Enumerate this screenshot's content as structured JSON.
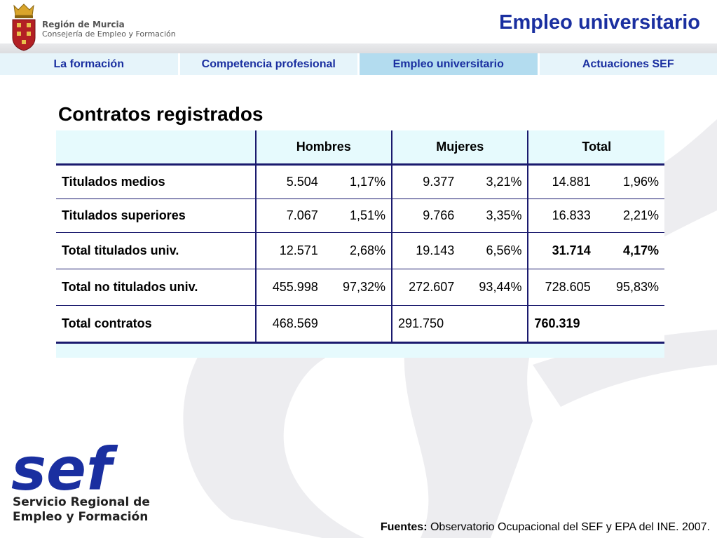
{
  "header": {
    "org_name": "Región de Murcia",
    "org_subtitle": "Consejería de Empleo y Formación",
    "page_title": "Empleo universitario"
  },
  "nav": {
    "tabs": [
      {
        "label": "La formación",
        "active": false
      },
      {
        "label": "Competencia profesional",
        "active": false
      },
      {
        "label": "Empleo universitario",
        "active": true
      },
      {
        "label": "Actuaciones SEF",
        "active": false
      }
    ]
  },
  "section": {
    "title": "Contratos registrados"
  },
  "table": {
    "headers": [
      "",
      "Hombres",
      "Mujeres",
      "Total"
    ],
    "rows": [
      {
        "label": "Titulados medios",
        "h_num": "5.504",
        "h_pct": "1,17%",
        "m_num": "9.377",
        "m_pct": "3,21%",
        "t_num": "14.881",
        "t_pct": "1,96%"
      },
      {
        "label": "Titulados superiores",
        "h_num": "7.067",
        "h_pct": "1,51%",
        "m_num": "9.766",
        "m_pct": "3,35%",
        "t_num": "16.833",
        "t_pct": "2,21%"
      },
      {
        "label": "Total titulados univ.",
        "h_num": "12.571",
        "h_pct": "2,68%",
        "m_num": "19.143",
        "m_pct": "6,56%",
        "t_num": "31.714",
        "t_pct": "4,17%"
      },
      {
        "label": "Total no titulados univ.",
        "h_num": "455.998",
        "h_pct": "97,32%",
        "m_num": "272.607",
        "m_pct": "93,44%",
        "t_num": "728.605",
        "t_pct": "95,83%"
      },
      {
        "label": "Total contratos",
        "h_num": "468.569",
        "h_pct": "",
        "m_num": "291.750",
        "m_pct": "",
        "t_num": "760.319",
        "t_pct": ""
      }
    ]
  },
  "footer": {
    "sef_logo_text": "sef",
    "sef_line1": "Servicio Regional de",
    "sef_line2": "Empleo y Formación",
    "sources_label": "Fuentes:",
    "sources_text": " Observatorio Ocupacional del SEF y EPA del INE. 2007."
  },
  "colors": {
    "title_blue": "#1a2fa0",
    "tab_bg": "#e6f4fa",
    "tab_active_bg": "#b3dcef",
    "table_header_bg": "#e6fafd",
    "table_border": "#1a1a6e",
    "sef_blue": "#1a2fa0",
    "watermark_gray": "#eeeef0"
  }
}
